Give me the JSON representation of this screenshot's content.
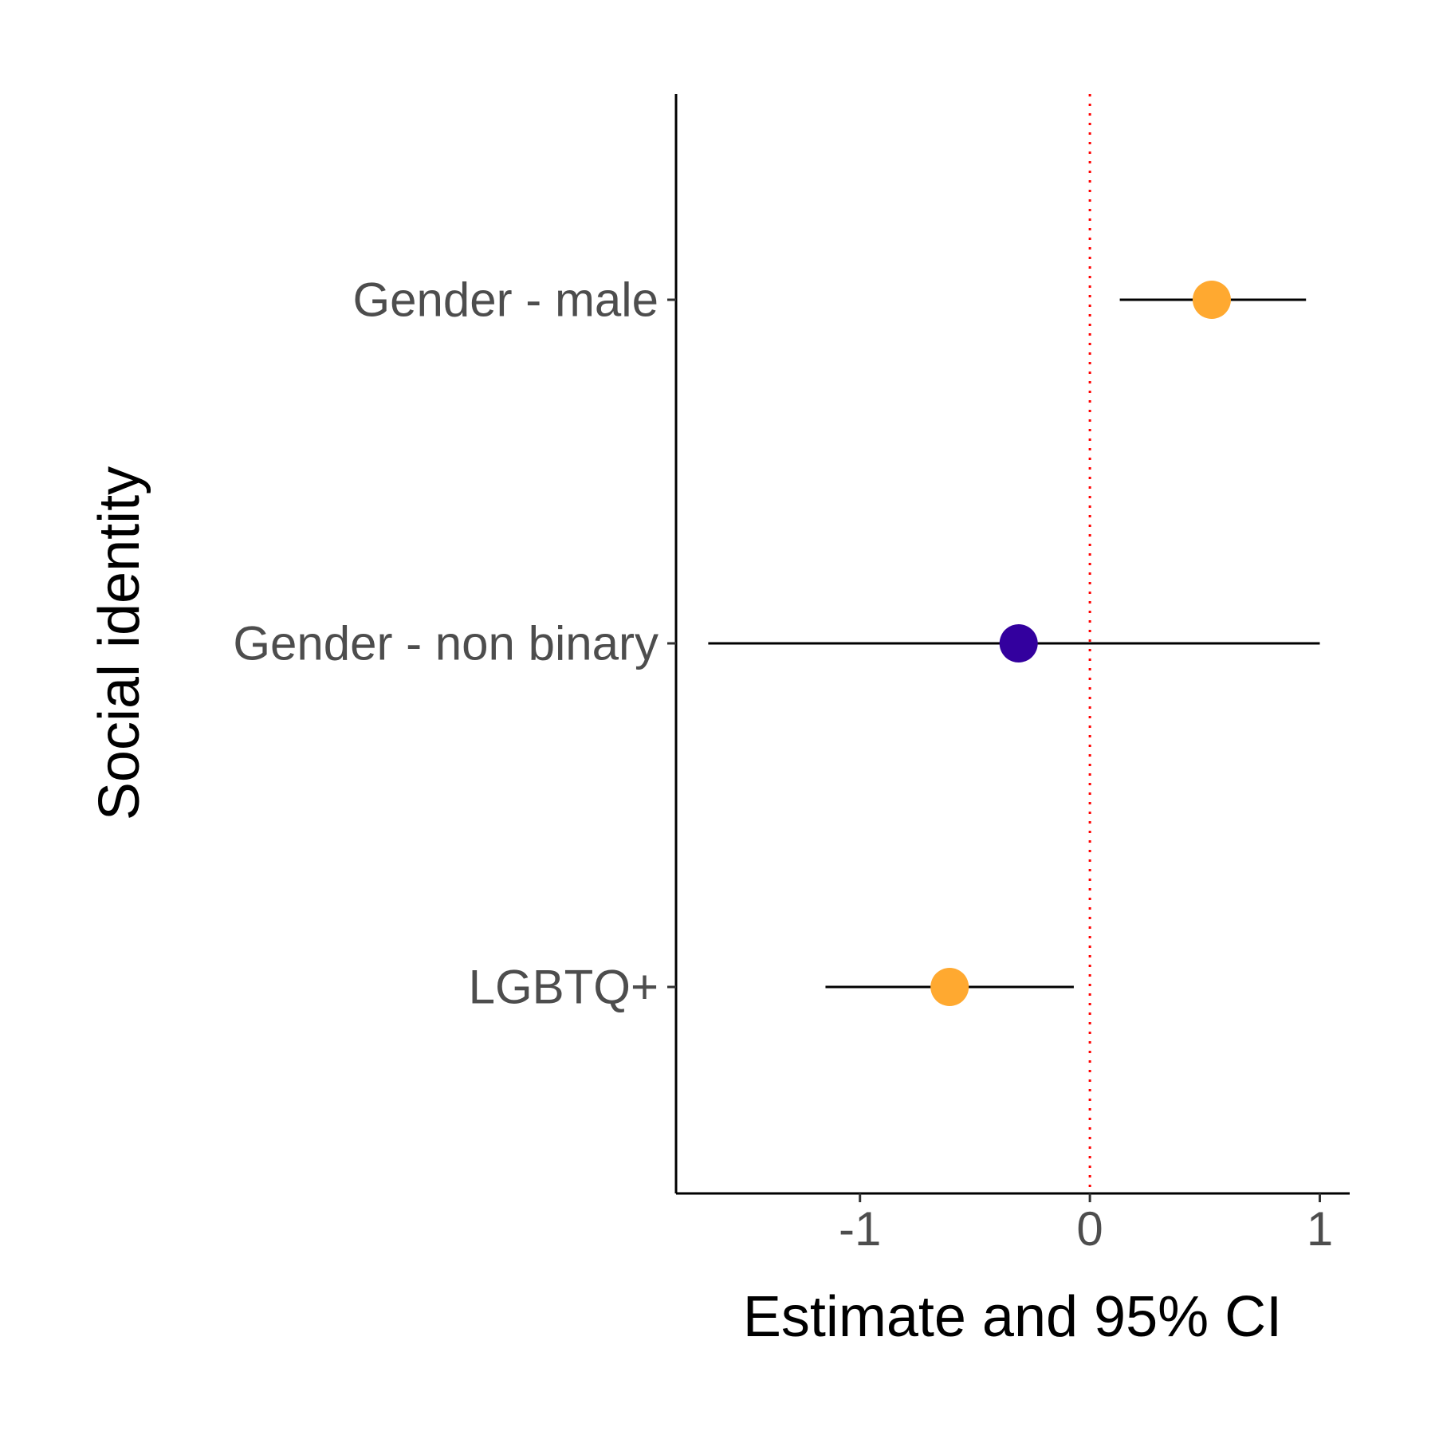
{
  "chart_data": {
    "type": "scatter",
    "subtype": "forest-plot",
    "title": "",
    "xlabel": "Estimate and 95% CI",
    "ylabel": "Social identity",
    "xlim": [
      -1.8,
      1.13
    ],
    "xticks": [
      -1,
      0,
      1
    ],
    "xtick_labels": [
      "-1",
      "0",
      "1"
    ],
    "reference_line": {
      "x": 0,
      "style": "dotted",
      "color": "#ff0000"
    },
    "grid": false,
    "legend": "none",
    "categories": [
      "Gender - male",
      "Gender - non binary",
      "LGBTQ+"
    ],
    "estimates": [
      0.53,
      -0.31,
      -0.61
    ],
    "ci_lower": [
      0.13,
      -1.66,
      -1.15
    ],
    "ci_upper": [
      0.94,
      1.0,
      -0.07
    ],
    "point_colors": [
      "#FFA930",
      "#33009E",
      "#FFA930"
    ],
    "colors": {
      "significant": "#FFA930",
      "not_significant": "#33009E",
      "errorbar": "#000000",
      "axis": "#000000"
    }
  }
}
